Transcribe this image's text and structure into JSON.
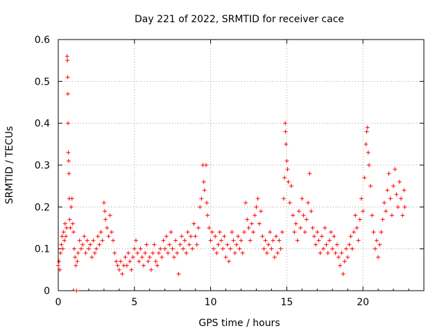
{
  "chart_data": {
    "type": "scatter",
    "title": "Day 221 of 2022, SRMTID for receiver cace",
    "xlabel": "GPS time / hours",
    "ylabel": "SRMTID / TECUs",
    "xlim": [
      0,
      24
    ],
    "ylim": [
      0,
      0.6
    ],
    "xticks": [
      0,
      5,
      10,
      15,
      20
    ],
    "xtick_labels": [
      "0",
      "5",
      "10",
      "15",
      "20"
    ],
    "yticks": [
      0,
      0.1,
      0.2,
      0.3,
      0.4,
      0.5,
      0.6
    ],
    "ytick_labels": [
      "0",
      "0.1",
      "0.2",
      "0.3",
      "0.4",
      "0.5",
      "0.6"
    ],
    "grid": true,
    "marker": "+",
    "color": "#ff0000",
    "series": [
      {
        "name": "SRMTID",
        "points": [
          [
            0.0,
            0.06
          ],
          [
            0.05,
            0.07
          ],
          [
            0.1,
            0.05
          ],
          [
            0.15,
            0.09
          ],
          [
            0.2,
            0.11
          ],
          [
            0.25,
            0.13
          ],
          [
            0.3,
            0.1
          ],
          [
            0.35,
            0.14
          ],
          [
            0.4,
            0.12
          ],
          [
            0.45,
            0.16
          ],
          [
            0.5,
            0.13
          ],
          [
            0.55,
            0.15
          ],
          [
            0.58,
            0.56
          ],
          [
            0.6,
            0.55
          ],
          [
            0.62,
            0.51
          ],
          [
            0.63,
            0.47
          ],
          [
            0.64,
            0.4
          ],
          [
            0.66,
            0.33
          ],
          [
            0.68,
            0.31
          ],
          [
            0.7,
            0.28
          ],
          [
            0.72,
            0.22
          ],
          [
            0.75,
            0.17
          ],
          [
            0.8,
            0.15
          ],
          [
            0.85,
            0.2
          ],
          [
            0.9,
            0.22
          ],
          [
            0.95,
            0.16
          ],
          [
            1.0,
            0.14
          ],
          [
            1.05,
            0.1
          ],
          [
            1.1,
            0.08
          ],
          [
            1.15,
            0.06
          ],
          [
            1.2,
            0.0
          ],
          [
            1.25,
            0.07
          ],
          [
            1.3,
            0.09
          ],
          [
            1.4,
            0.12
          ],
          [
            1.5,
            0.1
          ],
          [
            1.6,
            0.11
          ],
          [
            1.7,
            0.13
          ],
          [
            1.8,
            0.09
          ],
          [
            1.9,
            0.12
          ],
          [
            2.0,
            0.1
          ],
          [
            2.1,
            0.11
          ],
          [
            2.2,
            0.08
          ],
          [
            2.3,
            0.12
          ],
          [
            2.4,
            0.09
          ],
          [
            2.5,
            0.1
          ],
          [
            2.6,
            0.13
          ],
          [
            2.7,
            0.11
          ],
          [
            2.8,
            0.14
          ],
          [
            2.9,
            0.12
          ],
          [
            3.0,
            0.21
          ],
          [
            3.05,
            0.19
          ],
          [
            3.1,
            0.17
          ],
          [
            3.2,
            0.15
          ],
          [
            3.3,
            0.13
          ],
          [
            3.4,
            0.18
          ],
          [
            3.5,
            0.14
          ],
          [
            3.6,
            0.12
          ],
          [
            3.7,
            0.09
          ],
          [
            3.8,
            0.07
          ],
          [
            3.9,
            0.06
          ],
          [
            4.0,
            0.05
          ],
          [
            4.1,
            0.07
          ],
          [
            4.2,
            0.04
          ],
          [
            4.3,
            0.06
          ],
          [
            4.4,
            0.08
          ],
          [
            4.5,
            0.06
          ],
          [
            4.6,
            0.09
          ],
          [
            4.7,
            0.07
          ],
          [
            4.8,
            0.05
          ],
          [
            4.9,
            0.08
          ],
          [
            5.0,
            0.1
          ],
          [
            5.1,
            0.12
          ],
          [
            5.2,
            0.09
          ],
          [
            5.3,
            0.07
          ],
          [
            5.4,
            0.1
          ],
          [
            5.5,
            0.08
          ],
          [
            5.6,
            0.06
          ],
          [
            5.7,
            0.09
          ],
          [
            5.8,
            0.11
          ],
          [
            5.9,
            0.07
          ],
          [
            6.0,
            0.08
          ],
          [
            6.1,
            0.05
          ],
          [
            6.2,
            0.09
          ],
          [
            6.3,
            0.11
          ],
          [
            6.4,
            0.07
          ],
          [
            6.5,
            0.06
          ],
          [
            6.6,
            0.09
          ],
          [
            6.7,
            0.1
          ],
          [
            6.8,
            0.08
          ],
          [
            6.9,
            0.12
          ],
          [
            7.0,
            0.1
          ],
          [
            7.1,
            0.13
          ],
          [
            7.2,
            0.09
          ],
          [
            7.3,
            0.11
          ],
          [
            7.4,
            0.14
          ],
          [
            7.5,
            0.1
          ],
          [
            7.6,
            0.08
          ],
          [
            7.7,
            0.12
          ],
          [
            7.8,
            0.09
          ],
          [
            7.9,
            0.04
          ],
          [
            8.0,
            0.11
          ],
          [
            8.1,
            0.13
          ],
          [
            8.2,
            0.1
          ],
          [
            8.3,
            0.12
          ],
          [
            8.4,
            0.09
          ],
          [
            8.5,
            0.14
          ],
          [
            8.6,
            0.11
          ],
          [
            8.7,
            0.13
          ],
          [
            8.8,
            0.1
          ],
          [
            8.9,
            0.16
          ],
          [
            9.0,
            0.13
          ],
          [
            9.1,
            0.11
          ],
          [
            9.2,
            0.15
          ],
          [
            9.3,
            0.2
          ],
          [
            9.4,
            0.22
          ],
          [
            9.5,
            0.3
          ],
          [
            9.55,
            0.26
          ],
          [
            9.6,
            0.24
          ],
          [
            9.7,
            0.3
          ],
          [
            9.75,
            0.21
          ],
          [
            9.8,
            0.18
          ],
          [
            9.9,
            0.15
          ],
          [
            10.0,
            0.12
          ],
          [
            10.1,
            0.14
          ],
          [
            10.2,
            0.1
          ],
          [
            10.3,
            0.13
          ],
          [
            10.4,
            0.09
          ],
          [
            10.5,
            0.11
          ],
          [
            10.6,
            0.14
          ],
          [
            10.7,
            0.12
          ],
          [
            10.8,
            0.1
          ],
          [
            10.9,
            0.13
          ],
          [
            11.0,
            0.08
          ],
          [
            11.1,
            0.11
          ],
          [
            11.2,
            0.07
          ],
          [
            11.3,
            0.1
          ],
          [
            11.4,
            0.14
          ],
          [
            11.5,
            0.12
          ],
          [
            11.6,
            0.09
          ],
          [
            11.7,
            0.11
          ],
          [
            11.8,
            0.13
          ],
          [
            11.9,
            0.1
          ],
          [
            12.0,
            0.12
          ],
          [
            12.1,
            0.09
          ],
          [
            12.2,
            0.14
          ],
          [
            12.3,
            0.21
          ],
          [
            12.4,
            0.17
          ],
          [
            12.5,
            0.15
          ],
          [
            12.6,
            0.12
          ],
          [
            12.7,
            0.16
          ],
          [
            12.8,
            0.14
          ],
          [
            12.9,
            0.18
          ],
          [
            13.0,
            0.2
          ],
          [
            13.1,
            0.22
          ],
          [
            13.2,
            0.16
          ],
          [
            13.3,
            0.19
          ],
          [
            13.4,
            0.13
          ],
          [
            13.5,
            0.1
          ],
          [
            13.6,
            0.12
          ],
          [
            13.7,
            0.09
          ],
          [
            13.8,
            0.11
          ],
          [
            13.9,
            0.14
          ],
          [
            14.0,
            0.1
          ],
          [
            14.1,
            0.12
          ],
          [
            14.2,
            0.08
          ],
          [
            14.3,
            0.13
          ],
          [
            14.4,
            0.09
          ],
          [
            14.5,
            0.12
          ],
          [
            14.6,
            0.1
          ],
          [
            14.7,
            0.14
          ],
          [
            14.8,
            0.22
          ],
          [
            14.85,
            0.27
          ],
          [
            14.9,
            0.4
          ],
          [
            14.92,
            0.38
          ],
          [
            14.95,
            0.35
          ],
          [
            15.0,
            0.31
          ],
          [
            15.05,
            0.29
          ],
          [
            15.1,
            0.26
          ],
          [
            15.2,
            0.21
          ],
          [
            15.3,
            0.25
          ],
          [
            15.4,
            0.18
          ],
          [
            15.5,
            0.14
          ],
          [
            15.6,
            0.16
          ],
          [
            15.7,
            0.12
          ],
          [
            15.8,
            0.19
          ],
          [
            15.9,
            0.15
          ],
          [
            16.0,
            0.22
          ],
          [
            16.1,
            0.18
          ],
          [
            16.2,
            0.14
          ],
          [
            16.3,
            0.17
          ],
          [
            16.4,
            0.21
          ],
          [
            16.5,
            0.28
          ],
          [
            16.6,
            0.19
          ],
          [
            16.7,
            0.15
          ],
          [
            16.8,
            0.13
          ],
          [
            16.9,
            0.11
          ],
          [
            17.0,
            0.14
          ],
          [
            17.1,
            0.12
          ],
          [
            17.2,
            0.09
          ],
          [
            17.3,
            0.13
          ],
          [
            17.4,
            0.1
          ],
          [
            17.5,
            0.15
          ],
          [
            17.6,
            0.11
          ],
          [
            17.7,
            0.09
          ],
          [
            17.8,
            0.12
          ],
          [
            17.9,
            0.14
          ],
          [
            18.0,
            0.1
          ],
          [
            18.1,
            0.13
          ],
          [
            18.2,
            0.09
          ],
          [
            18.3,
            0.11
          ],
          [
            18.4,
            0.08
          ],
          [
            18.5,
            0.06
          ],
          [
            18.6,
            0.09
          ],
          [
            18.7,
            0.04
          ],
          [
            18.8,
            0.07
          ],
          [
            18.9,
            0.1
          ],
          [
            19.0,
            0.08
          ],
          [
            19.1,
            0.11
          ],
          [
            19.2,
            0.13
          ],
          [
            19.3,
            0.1
          ],
          [
            19.4,
            0.14
          ],
          [
            19.5,
            0.18
          ],
          [
            19.6,
            0.15
          ],
          [
            19.7,
            0.12
          ],
          [
            19.8,
            0.17
          ],
          [
            19.9,
            0.22
          ],
          [
            20.0,
            0.19
          ],
          [
            20.1,
            0.27
          ],
          [
            20.2,
            0.35
          ],
          [
            20.25,
            0.38
          ],
          [
            20.3,
            0.39
          ],
          [
            20.35,
            0.33
          ],
          [
            20.4,
            0.3
          ],
          [
            20.5,
            0.25
          ],
          [
            20.6,
            0.18
          ],
          [
            20.7,
            0.14
          ],
          [
            20.8,
            0.1
          ],
          [
            20.9,
            0.12
          ],
          [
            21.0,
            0.08
          ],
          [
            21.1,
            0.11
          ],
          [
            21.2,
            0.14
          ],
          [
            21.3,
            0.17
          ],
          [
            21.4,
            0.21
          ],
          [
            21.5,
            0.19
          ],
          [
            21.6,
            0.24
          ],
          [
            21.7,
            0.28
          ],
          [
            21.8,
            0.22
          ],
          [
            21.9,
            0.18
          ],
          [
            22.0,
            0.25
          ],
          [
            22.1,
            0.29
          ],
          [
            22.2,
            0.23
          ],
          [
            22.3,
            0.2
          ],
          [
            22.4,
            0.26
          ],
          [
            22.5,
            0.22
          ],
          [
            22.6,
            0.18
          ],
          [
            22.7,
            0.24
          ],
          [
            22.75,
            0.2
          ]
        ]
      }
    ]
  }
}
